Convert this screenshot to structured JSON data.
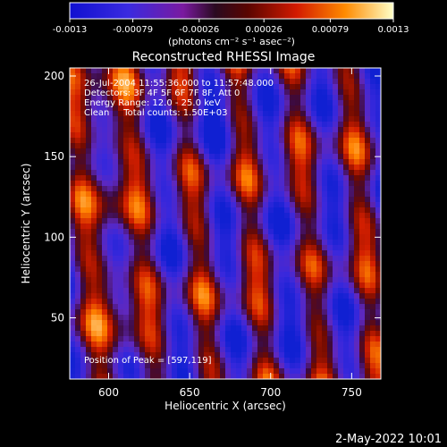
{
  "colorbar": {
    "tick_labels": [
      "-0.0013",
      "-0.00079",
      "-0.00026",
      "0.00026",
      "0.00079",
      "0.0013"
    ],
    "units_label": "(photons cm⁻² s⁻¹ asec⁻²)",
    "range": [
      -0.0013,
      0.0013
    ]
  },
  "image": {
    "title": "Reconstructed RHESSI Image",
    "annotations": {
      "time": "26-Jul-2004 11:55:36.000 to 11:57:48.000",
      "detectors": "Detectors: 3F 4F 5F 6F 7F 8F, Att 0",
      "energy": "Energy Range: 12.0 - 25.0 keV",
      "method": "Clean     Total counts: 1.50E+03",
      "peak": "Position of Peak = [597,119]"
    },
    "xlabel": "Heliocentric X (arcsec)",
    "ylabel": "Heliocentric Y (arcsec)",
    "x_ticks": [
      "600",
      "650",
      "700",
      "750"
    ],
    "y_ticks": [
      "50",
      "100",
      "150",
      "200"
    ],
    "x_range": [
      576,
      768
    ],
    "y_range": [
      12,
      205
    ]
  },
  "footer": {
    "timestamp": "2-May-2022 10:01"
  }
}
